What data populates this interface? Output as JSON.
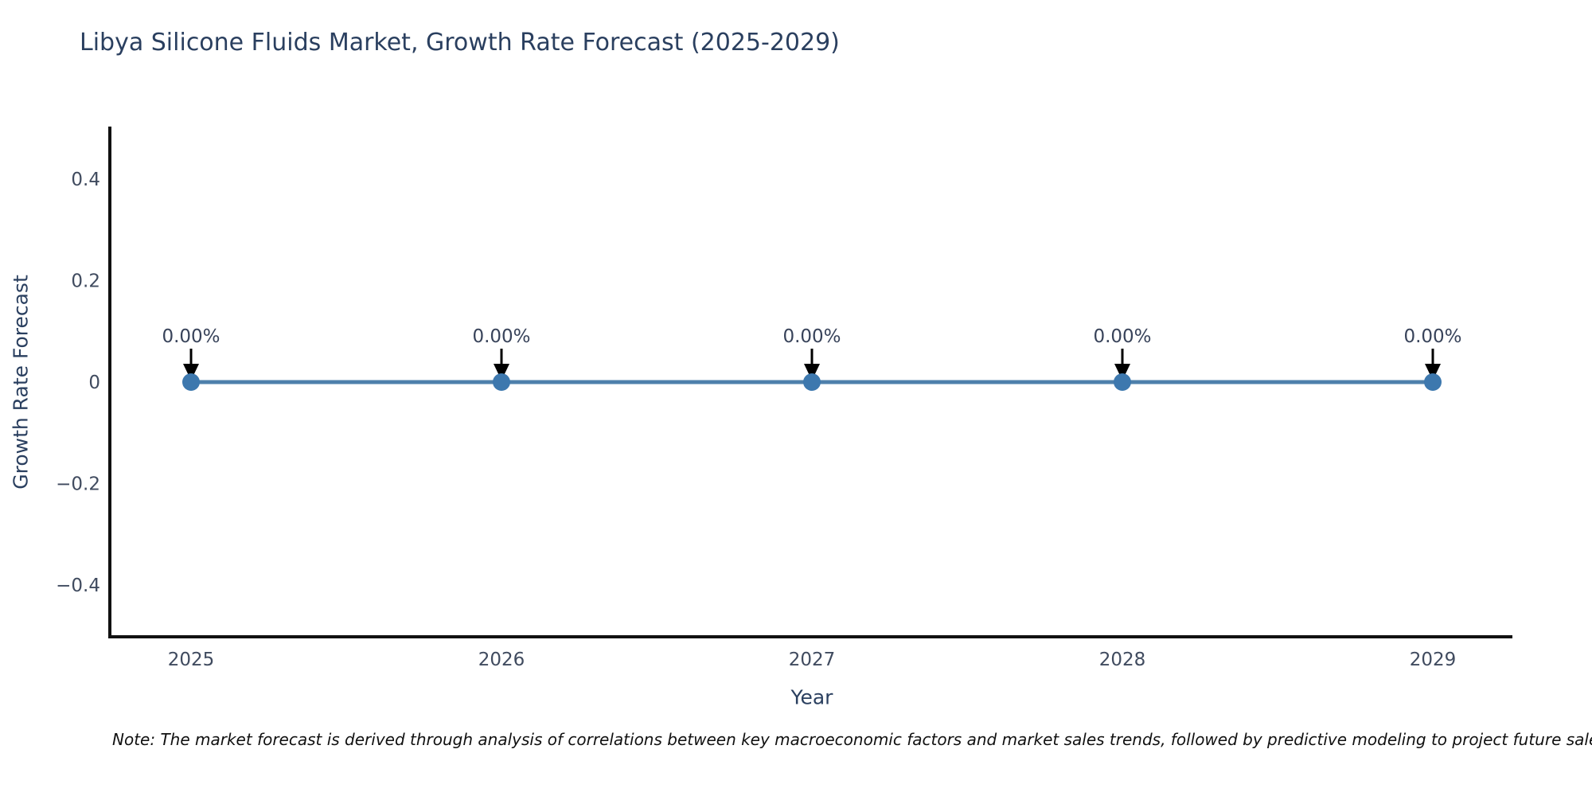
{
  "chart_data": {
    "type": "line",
    "title": "Libya Silicone Fluids Market, Growth Rate Forecast (2025-2029)",
    "xlabel": "Year",
    "ylabel": "Growth Rate Forecast",
    "categories": [
      "2025",
      "2026",
      "2027",
      "2028",
      "2029"
    ],
    "values": [
      0,
      0,
      0,
      0,
      0
    ],
    "point_labels": [
      "0.00%",
      "0.00%",
      "0.00%",
      "0.00%",
      "0.00%"
    ],
    "ytick_values": [
      0.4,
      0.2,
      0,
      -0.2,
      -0.4
    ],
    "ytick_labels": [
      "0.4",
      "0.2",
      "0",
      "−0.2",
      "−0.4"
    ],
    "ylim": [
      -0.5,
      0.5
    ],
    "grid": false,
    "legend": null,
    "annotation_style": "down-arrow-to-point",
    "colors": {
      "line": "#4e80ab",
      "marker": "#3d78ae",
      "arrow": "#000000",
      "axis_line": "#111111",
      "title_text": "#2a3f5f",
      "tick_text": "#404b5f",
      "note_text": "#111111"
    },
    "note": "Note: The market forecast is derived through analysis of correlations between key macroeconomic factors and market sales trends, followed by predictive modeling to project future sales"
  }
}
